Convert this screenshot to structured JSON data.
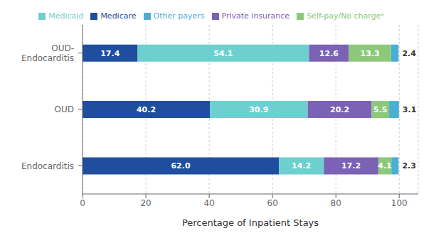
{
  "chart_data": {
    "type": "bar",
    "orientation": "horizontal",
    "stacked": true,
    "categories": [
      "OUD-\nEndocarditis",
      "OUD",
      "Endocarditis"
    ],
    "series": [
      {
        "name": "Medicare",
        "color": "#1f4e9e",
        "values": [
          17.4,
          40.2,
          62.0
        ],
        "value_labels": [
          "17.4",
          "40.2",
          "62.0"
        ]
      },
      {
        "name": "Medicaid",
        "color": "#6dcfcf",
        "values": [
          54.1,
          30.9,
          14.2
        ],
        "value_labels": [
          "54.1",
          "30.9",
          "14.2"
        ]
      },
      {
        "name": "Private insurance",
        "color": "#7b62b5",
        "values": [
          12.6,
          20.2,
          17.2
        ],
        "value_labels": [
          "12.6",
          "20.2",
          "17.2"
        ]
      },
      {
        "name": "Self-pay/No chargeᵃ",
        "color": "#8dc87a",
        "values": [
          13.3,
          5.5,
          4.1
        ],
        "value_labels": [
          "13.3",
          "5.5",
          "4.1"
        ]
      },
      {
        "name": "Other payers",
        "color": "#4baed4",
        "values": [
          2.4,
          3.1,
          2.3
        ],
        "value_labels": [
          "2.4",
          "3.1",
          "2.3"
        ]
      }
    ],
    "xlabel": "Percentage of Inpatient Stays",
    "xlim": [
      0,
      106
    ],
    "xticks": [
      0,
      20,
      40,
      60,
      80,
      100
    ],
    "grid": true,
    "legend": "top",
    "data_labels": true
  }
}
